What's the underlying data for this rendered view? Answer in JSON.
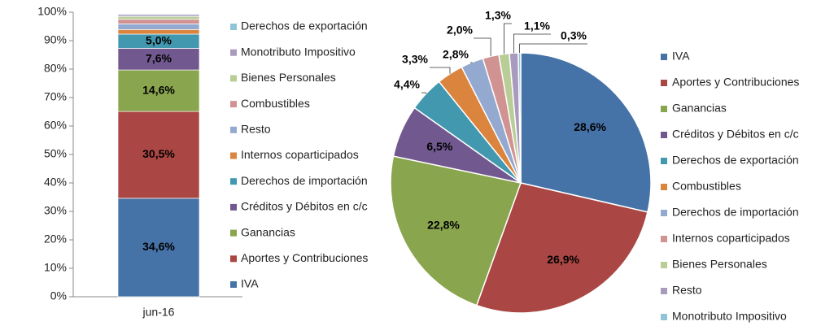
{
  "chart_data": [
    {
      "type": "bar",
      "stacked": true,
      "categories": [
        "jun-16"
      ],
      "ylim": [
        0,
        100
      ],
      "yticks": [
        {
          "value": 0,
          "label": "0%"
        },
        {
          "value": 10,
          "label": "10%"
        },
        {
          "value": 20,
          "label": "20%"
        },
        {
          "value": 30,
          "label": "30%"
        },
        {
          "value": 40,
          "label": "40%"
        },
        {
          "value": 50,
          "label": "50%"
        },
        {
          "value": 60,
          "label": "60%"
        },
        {
          "value": 70,
          "label": "70%"
        },
        {
          "value": 80,
          "label": "80%"
        },
        {
          "value": 90,
          "label": "90%"
        },
        {
          "value": 100,
          "label": "100%"
        }
      ],
      "series": [
        {
          "name": "IVA",
          "color": "#4572a7",
          "values": [
            34.6
          ],
          "value_labels": [
            "34,6%"
          ]
        },
        {
          "name": "Aportes y Contribuciones",
          "color": "#aa4643",
          "values": [
            30.5
          ],
          "value_labels": [
            "30,5%"
          ]
        },
        {
          "name": "Ganancias",
          "color": "#89a54e",
          "values": [
            14.6
          ],
          "value_labels": [
            "14,6%"
          ]
        },
        {
          "name": "Créditos y Débitos en c/c",
          "color": "#71588f",
          "values": [
            7.6
          ],
          "value_labels": [
            "7,6%"
          ]
        },
        {
          "name": "Derechos de importación",
          "color": "#4198af",
          "values": [
            5.0
          ],
          "value_labels": [
            "5,0%"
          ]
        },
        {
          "name": "Internos coparticipados",
          "color": "#db843d",
          "values": [
            1.6
          ]
        },
        {
          "name": "Resto",
          "color": "#93a9cf",
          "values": [
            2.0
          ]
        },
        {
          "name": "Combustibles",
          "color": "#d19392",
          "values": [
            1.6
          ]
        },
        {
          "name": "Bienes Personales",
          "color": "#b9cd96",
          "values": [
            1.0
          ]
        },
        {
          "name": "Monotributo Impositivo",
          "color": "#a99bbd",
          "values": [
            0.6
          ]
        },
        {
          "name": "Derechos de exportación",
          "color": "#92c4d8",
          "values": [
            0.3
          ]
        }
      ]
    },
    {
      "type": "pie",
      "categories": [
        "IVA",
        "Aportes y Contribuciones",
        "Ganancias",
        "Créditos y Débitos en c/c",
        "Derechos de exportación",
        "Combustibles",
        "Derechos de importación",
        "Internos coparticipados",
        "Bienes Personales",
        "Resto",
        "Monotributo Impositivo"
      ],
      "values": [
        28.6,
        26.9,
        22.8,
        6.5,
        4.4,
        3.3,
        2.8,
        2.0,
        1.3,
        1.1,
        0.3
      ],
      "value_labels": [
        "28,6%",
        "26,9%",
        "22,8%",
        "6,5%",
        "4,4%",
        "3,3%",
        "2,8%",
        "2,0%",
        "1,3%",
        "1,1%",
        "0,3%"
      ],
      "colors": [
        "#4572a7",
        "#aa4643",
        "#89a54e",
        "#71588f",
        "#4198af",
        "#db843d",
        "#93a9cf",
        "#d19392",
        "#b9cd96",
        "#a99bbd",
        "#92c4d8"
      ]
    }
  ]
}
